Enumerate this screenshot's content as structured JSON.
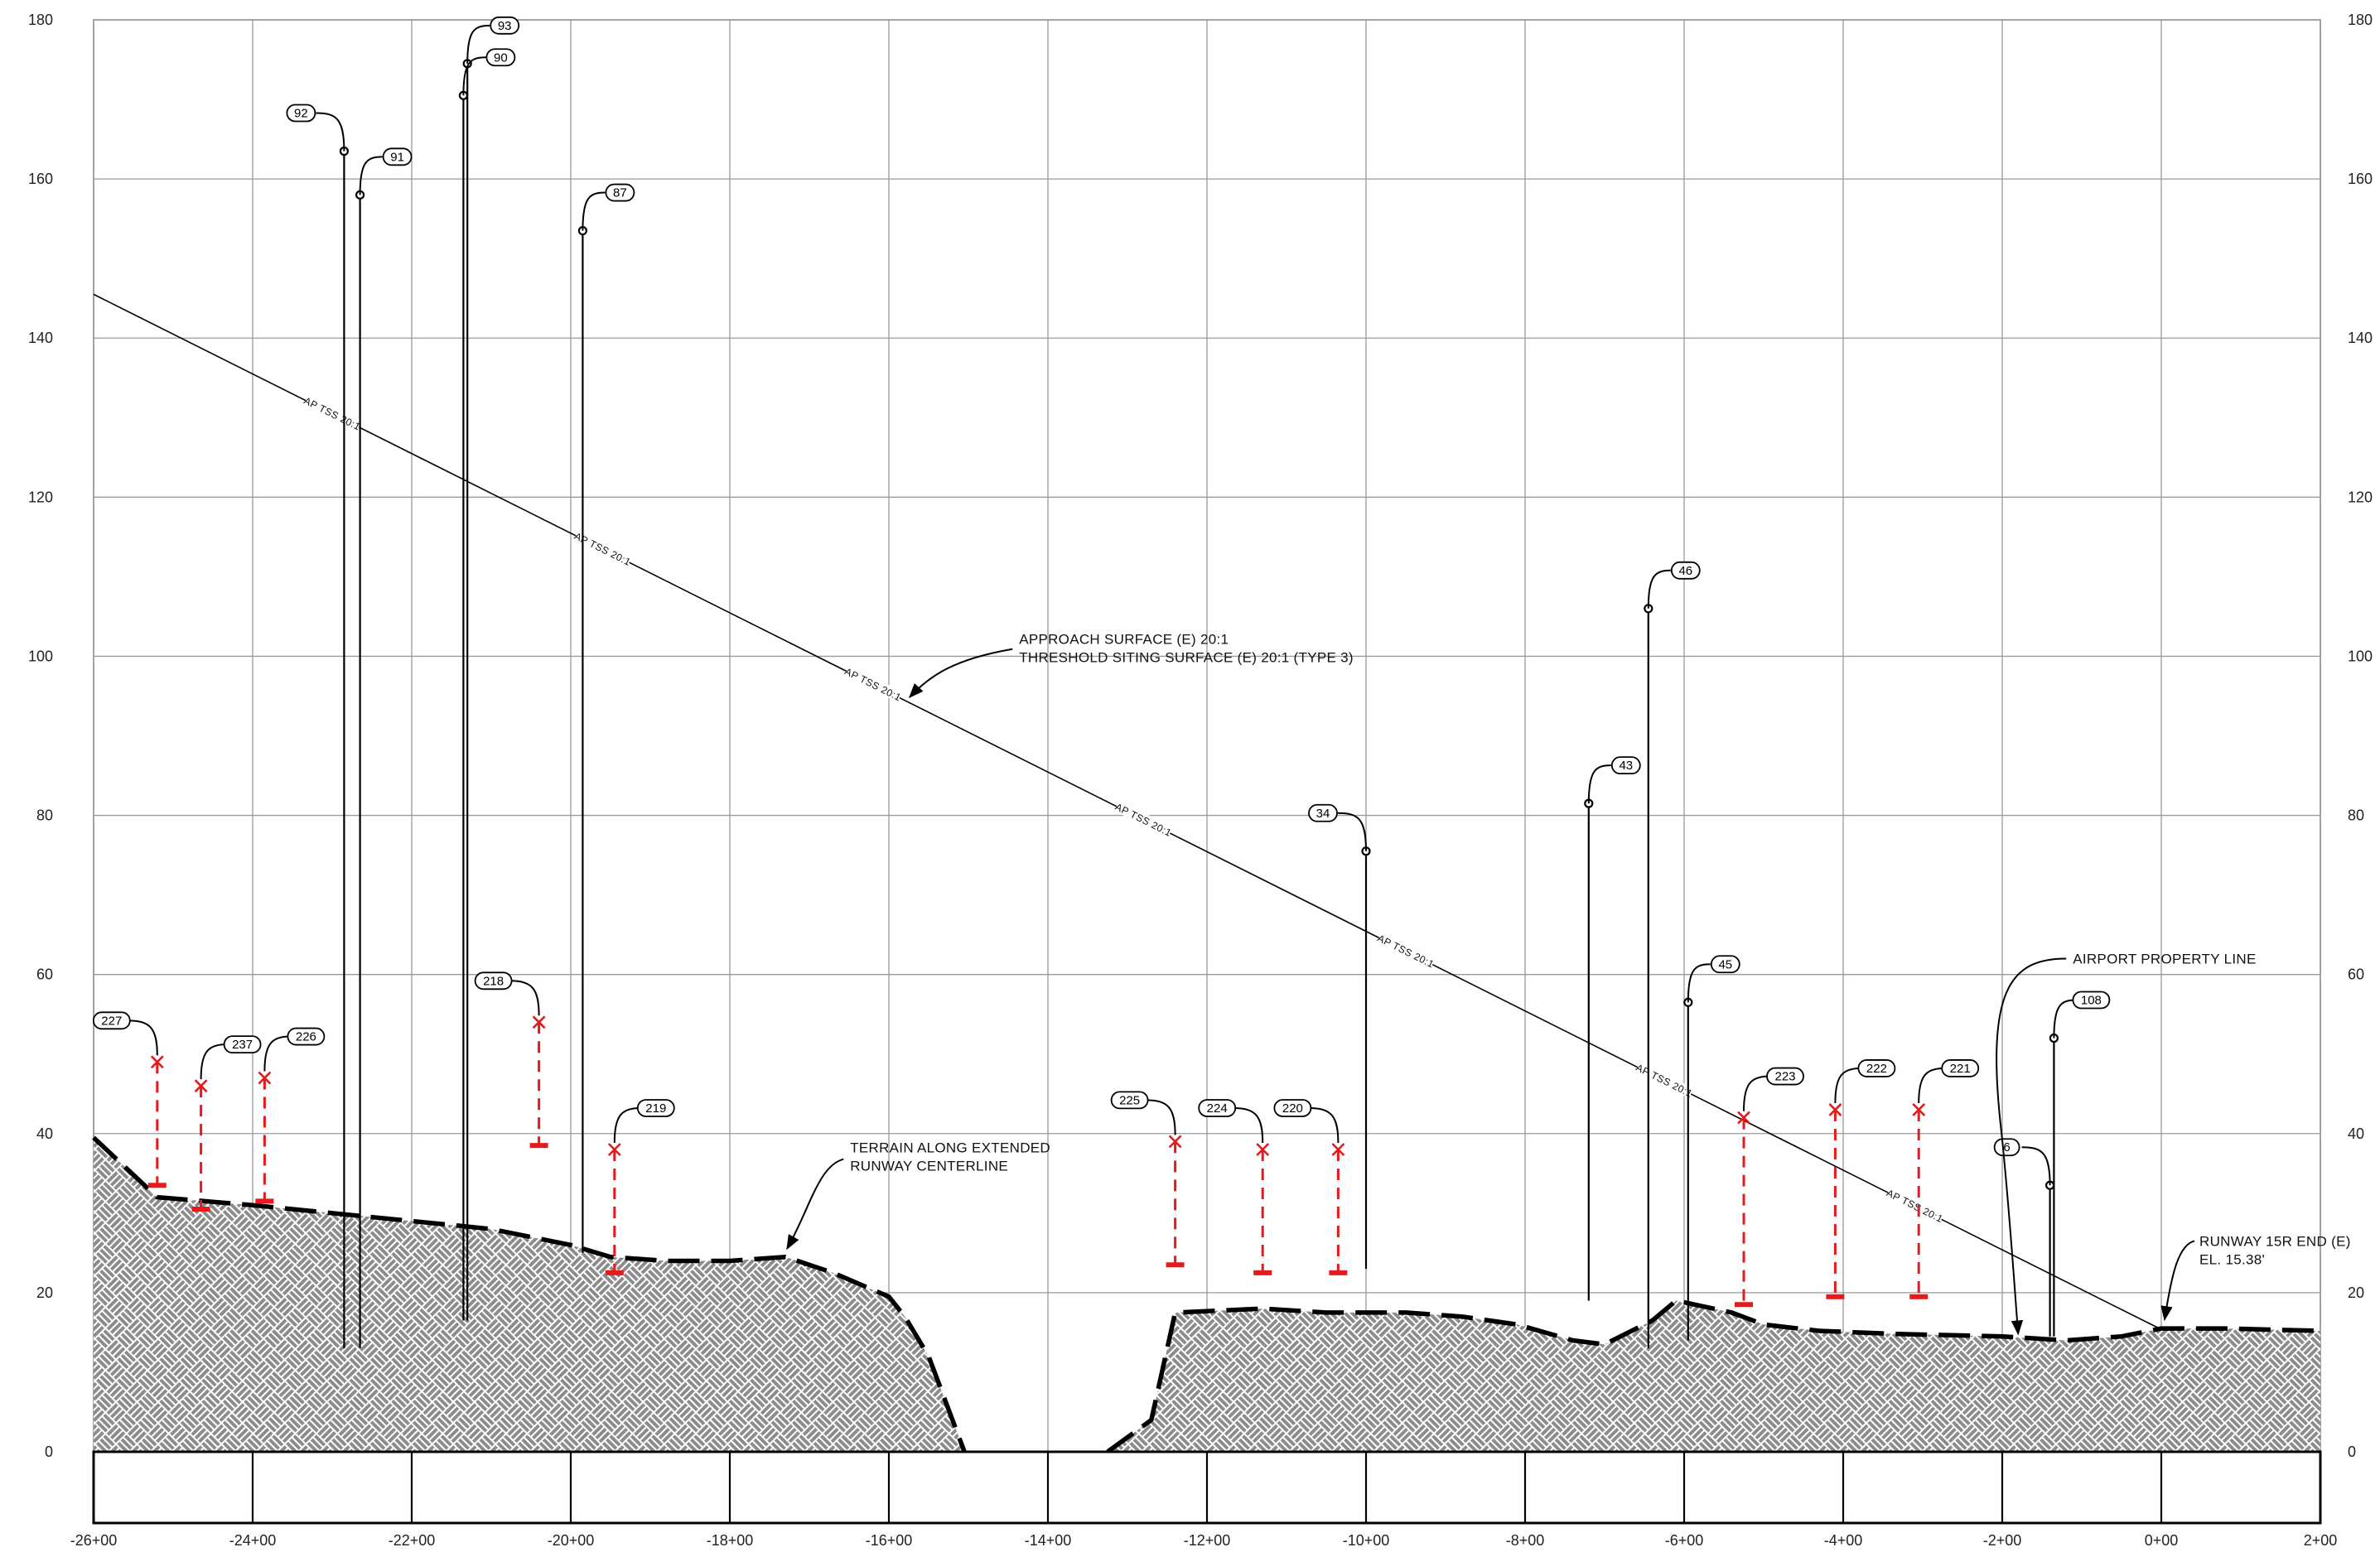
{
  "chart_data": {
    "type": "diagram",
    "x_ticks": [
      "-26+00",
      "-24+00",
      "-22+00",
      "-20+00",
      "-18+00",
      "-16+00",
      "-14+00",
      "-12+00",
      "-10+00",
      "-8+00",
      "-6+00",
      "-4+00",
      "-2+00",
      "0+00",
      "2+00"
    ],
    "y_ticks_left": [
      "0",
      "20",
      "40",
      "60",
      "80",
      "100",
      "120",
      "140",
      "160",
      "180"
    ],
    "y_ticks_right": [
      "0",
      "20",
      "40",
      "60",
      "80",
      "100",
      "120",
      "140",
      "160",
      "180"
    ],
    "xlim": [
      -2600,
      200
    ],
    "ylim": [
      0,
      180
    ],
    "surface": {
      "label": "AP TSS 20:1",
      "from": [
        -2600,
        145.5
      ],
      "to": [
        0,
        15.38
      ],
      "label_positions": [
        -2300,
        -1960,
        -1620,
        -1280,
        -950,
        -625,
        -310
      ]
    },
    "terrain_left": [
      [
        -2600,
        39.5
      ],
      [
        -2520,
        32
      ],
      [
        -2400,
        31
      ],
      [
        -2300,
        30
      ],
      [
        -2200,
        29
      ],
      [
        -2100,
        28
      ],
      [
        -2000,
        26
      ],
      [
        -1950,
        24.5
      ],
      [
        -1880,
        24
      ],
      [
        -1800,
        24
      ],
      [
        -1730,
        24.5
      ],
      [
        -1670,
        22.5
      ],
      [
        -1600,
        19.5
      ],
      [
        -1580,
        17
      ],
      [
        -1550,
        12
      ],
      [
        -1505,
        0
      ]
    ],
    "terrain_right": [
      [
        -1325,
        0
      ],
      [
        -1270,
        4
      ],
      [
        -1240,
        17.5
      ],
      [
        -1130,
        18
      ],
      [
        -1050,
        17.5
      ],
      [
        -950,
        17.5
      ],
      [
        -880,
        17
      ],
      [
        -810,
        16
      ],
      [
        -740,
        14
      ],
      [
        -700,
        13.5
      ],
      [
        -640,
        16.5
      ],
      [
        -610,
        19
      ],
      [
        -540,
        17.5
      ],
      [
        -500,
        16
      ],
      [
        -430,
        15.2
      ],
      [
        -330,
        14.8
      ],
      [
        -200,
        14.5
      ],
      [
        -120,
        14
      ],
      [
        -50,
        14.5
      ],
      [
        0,
        15.5
      ],
      [
        80,
        15.5
      ],
      [
        200,
        15.2
      ]
    ],
    "obstructions_black": [
      {
        "id": "93",
        "x": -2130,
        "top": 174.5,
        "base": 16.5
      },
      {
        "id": "90",
        "x": -2135,
        "top": 170.5,
        "base": 16.5
      },
      {
        "id": "92",
        "x": -2285,
        "top": 163.5,
        "base": 13
      },
      {
        "id": "91",
        "x": -2265,
        "top": 158,
        "base": 13
      },
      {
        "id": "87",
        "x": -1985,
        "top": 153.5,
        "base": 25
      },
      {
        "id": "46",
        "x": -645,
        "top": 106,
        "base": 13
      },
      {
        "id": "43",
        "x": -720,
        "top": 81.5,
        "base": 19
      },
      {
        "id": "34",
        "x": -1000,
        "top": 75.5,
        "base": 23
      },
      {
        "id": "45",
        "x": -595,
        "top": 56.5,
        "base": 14
      },
      {
        "id": "108",
        "x": -135,
        "top": 52,
        "base": 14.5
      },
      {
        "id": "6",
        "x": -140,
        "top": 33.5,
        "base": 14.5
      }
    ],
    "obstructions_red": [
      {
        "id": "227",
        "x": -2520,
        "top": 49,
        "base": 33.5
      },
      {
        "id": "237",
        "x": -2465,
        "top": 46,
        "base": 30.5
      },
      {
        "id": "226",
        "x": -2385,
        "top": 47,
        "base": 31.5
      },
      {
        "id": "218",
        "x": -2040,
        "top": 54,
        "base": 38.5
      },
      {
        "id": "219",
        "x": -1945,
        "top": 38,
        "base": 22.5
      },
      {
        "id": "225",
        "x": -1240,
        "top": 39,
        "base": 23.5
      },
      {
        "id": "224",
        "x": -1130,
        "top": 38,
        "base": 22.5
      },
      {
        "id": "220",
        "x": -1035,
        "top": 38,
        "base": 22.5
      },
      {
        "id": "223",
        "x": -525,
        "top": 42,
        "base": 18.5
      },
      {
        "id": "222",
        "x": -410,
        "top": 43,
        "base": 19.5
      },
      {
        "id": "221",
        "x": -305,
        "top": 43,
        "base": 19.5
      }
    ],
    "callouts": {
      "approach_line1": "APPROACH SURFACE (E) 20:1",
      "approach_line2": "THRESHOLD SITING SURFACE (E) 20:1 (TYPE 3)",
      "terrain_line1": "TERRAIN ALONG EXTENDED",
      "terrain_line2": "RUNWAY CENTERLINE",
      "property_line": "AIRPORT PROPERTY LINE",
      "runway_line1": "RUNWAY 15R END (E)",
      "runway_line2": "EL. 15.38'"
    },
    "property_line_x": -180,
    "colors": {
      "grid": "#9a9a9a",
      "red": "#e41a1c",
      "hatch": "#8c8c8c",
      "ink": "#000000"
    }
  }
}
